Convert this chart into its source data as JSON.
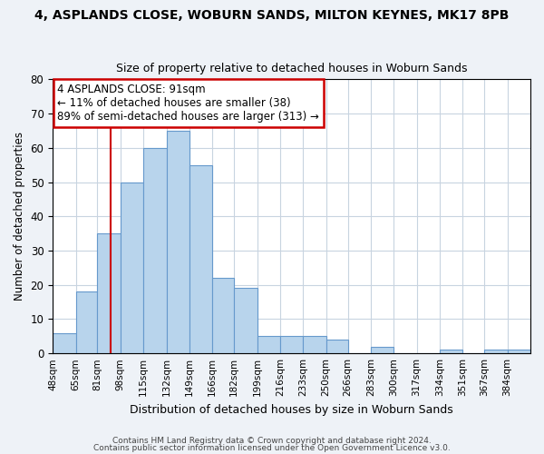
{
  "title": "4, ASPLANDS CLOSE, WOBURN SANDS, MILTON KEYNES, MK17 8PB",
  "subtitle": "Size of property relative to detached houses in Woburn Sands",
  "xlabel": "Distribution of detached houses by size in Woburn Sands",
  "ylabel": "Number of detached properties",
  "bin_labels": [
    "48sqm",
    "65sqm",
    "81sqm",
    "98sqm",
    "115sqm",
    "132sqm",
    "149sqm",
    "166sqm",
    "182sqm",
    "199sqm",
    "216sqm",
    "233sqm",
    "250sqm",
    "266sqm",
    "283sqm",
    "300sqm",
    "317sqm",
    "334sqm",
    "351sqm",
    "367sqm",
    "384sqm"
  ],
  "bar_values": [
    6,
    18,
    35,
    50,
    60,
    65,
    55,
    22,
    19,
    5,
    5,
    5,
    4,
    0,
    2,
    0,
    0,
    1,
    0,
    1,
    1
  ],
  "bar_color": "#b8d4ec",
  "bar_edge_color": "#6699cc",
  "ylim": [
    0,
    80
  ],
  "yticks": [
    0,
    10,
    20,
    30,
    40,
    50,
    60,
    70,
    80
  ],
  "property_line_x": 91,
  "bin_edges": [
    48,
    65,
    81,
    98,
    115,
    132,
    149,
    166,
    182,
    199,
    216,
    233,
    250,
    266,
    283,
    300,
    317,
    334,
    351,
    367,
    384,
    401
  ],
  "annotation_title": "4 ASPLANDS CLOSE: 91sqm",
  "annotation_line1": "← 11% of detached houses are smaller (38)",
  "annotation_line2": "89% of semi-detached houses are larger (313) →",
  "annotation_box_color": "#ffffff",
  "annotation_box_edge": "#cc0000",
  "vline_color": "#cc0000",
  "footnote1": "Contains HM Land Registry data © Crown copyright and database right 2024.",
  "footnote2": "Contains public sector information licensed under the Open Government Licence v3.0.",
  "bg_color": "#eef2f7",
  "plot_bg_color": "#ffffff",
  "grid_color": "#c8d4e0"
}
